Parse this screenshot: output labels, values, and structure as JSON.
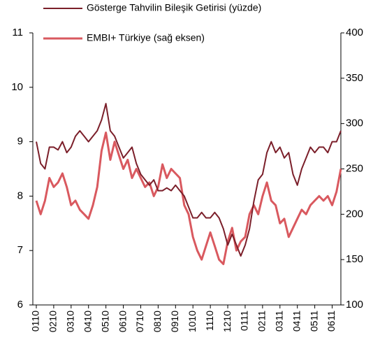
{
  "chart_data": {
    "type": "line",
    "x": [
      0,
      0.25,
      0.5,
      0.75,
      1,
      1.25,
      1.5,
      1.75,
      2,
      2.25,
      2.5,
      2.75,
      3,
      3.25,
      3.5,
      3.75,
      4,
      4.25,
      4.5,
      4.75,
      5,
      5.25,
      5.5,
      5.75,
      6,
      6.25,
      6.5,
      6.75,
      7,
      7.25,
      7.5,
      7.75,
      8,
      8.25,
      8.5,
      8.75,
      9,
      9.25,
      9.5,
      9.75,
      10,
      10.25,
      10.5,
      10.75,
      11,
      11.25,
      11.5,
      11.75,
      12,
      12.25,
      12.5,
      12.75,
      13,
      13.25,
      13.5,
      13.75,
      14,
      14.25,
      14.5,
      14.75,
      15,
      15.25,
      15.5,
      15.75,
      16,
      16.25,
      16.5,
      16.75,
      17,
      17.25,
      17.5
    ],
    "series": [
      {
        "name": "Gösterge Tahvilin Bileşik Getirisi (yüzde)",
        "color": "#7b1f2a",
        "values": [
          9.0,
          8.6,
          8.5,
          8.9,
          8.9,
          8.85,
          9.0,
          8.8,
          8.9,
          9.1,
          9.2,
          9.1,
          9.0,
          9.1,
          9.2,
          9.4,
          9.7,
          9.2,
          9.1,
          8.9,
          8.7,
          8.8,
          8.9,
          8.6,
          8.4,
          8.3,
          8.2,
          8.3,
          8.1,
          8.1,
          8.15,
          8.1,
          8.2,
          8.1,
          8.0,
          7.8,
          7.6,
          7.6,
          7.7,
          7.6,
          7.6,
          7.7,
          7.6,
          7.4,
          7.1,
          7.3,
          7.1,
          6.9,
          7.1,
          7.4,
          7.9,
          8.3,
          8.4,
          8.8,
          9.0,
          8.8,
          8.9,
          8.7,
          8.8,
          8.4,
          8.2,
          8.5,
          8.7,
          8.9,
          8.8,
          8.9,
          8.9,
          8.8,
          9.0,
          9.0,
          9.2
        ]
      },
      {
        "name": "EMBI+ Türkiye (sağ eksen)",
        "color": "#d9595f",
        "axis": "y2",
        "values": [
          215,
          200,
          215,
          240,
          230,
          235,
          245,
          230,
          210,
          215,
          205,
          200,
          195,
          210,
          230,
          270,
          290,
          260,
          280,
          265,
          250,
          260,
          240,
          250,
          240,
          230,
          235,
          220,
          230,
          255,
          240,
          250,
          245,
          240,
          210,
          200,
          175,
          160,
          150,
          165,
          180,
          165,
          150,
          145,
          170,
          185,
          160,
          170,
          175,
          200,
          210,
          200,
          220,
          235,
          215,
          210,
          190,
          195,
          175,
          185,
          195,
          205,
          200,
          210,
          215,
          220,
          215,
          220,
          210,
          225,
          250
        ]
      }
    ],
    "xlim": [
      -0.2,
      17.5
    ],
    "xticks": [
      {
        "value": 0,
        "label": "0110"
      },
      {
        "value": 1,
        "label": "0210"
      },
      {
        "value": 2,
        "label": "0310"
      },
      {
        "value": 3,
        "label": "0410"
      },
      {
        "value": 4,
        "label": "0510"
      },
      {
        "value": 5,
        "label": "0610"
      },
      {
        "value": 6,
        "label": "0710"
      },
      {
        "value": 7,
        "label": "0810"
      },
      {
        "value": 8,
        "label": "0910"
      },
      {
        "value": 9,
        "label": "1010"
      },
      {
        "value": 10,
        "label": "1110"
      },
      {
        "value": 11,
        "label": "1210"
      },
      {
        "value": 12,
        "label": "0111"
      },
      {
        "value": 13,
        "label": "0211"
      },
      {
        "value": 14,
        "label": "0311"
      },
      {
        "value": 15,
        "label": "0411"
      },
      {
        "value": 16,
        "label": "0511"
      },
      {
        "value": 17,
        "label": "0611"
      }
    ],
    "ylim": [
      6,
      11
    ],
    "yticks": [
      6,
      7,
      8,
      9,
      10,
      11
    ],
    "y2lim": [
      100,
      400
    ],
    "y2ticks": [
      100,
      150,
      200,
      250,
      300,
      350,
      400
    ],
    "grid": false
  }
}
